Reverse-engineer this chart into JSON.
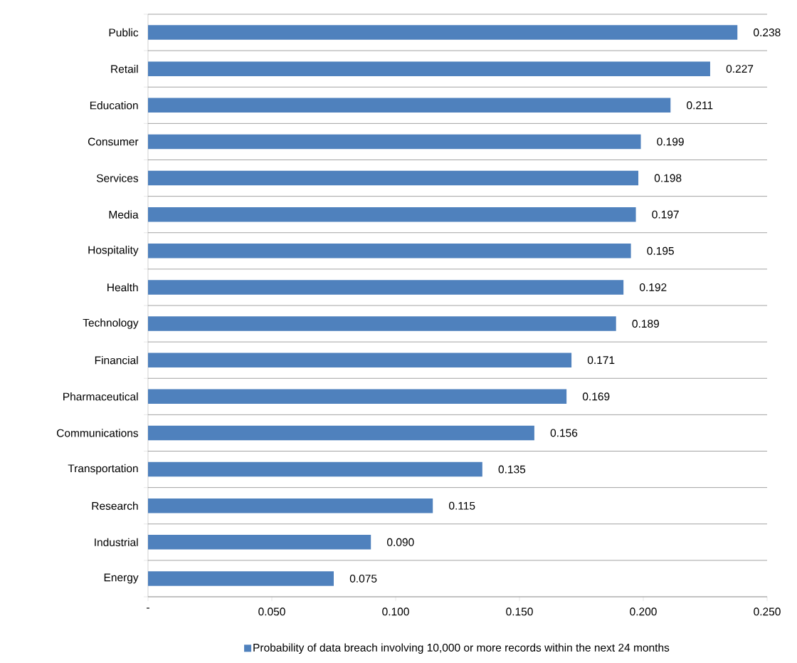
{
  "chart_data": {
    "type": "bar",
    "orientation": "horizontal",
    "categories": [
      "Public",
      "Retail",
      "Education",
      "Consumer",
      "Services",
      "Media",
      "Hospitality",
      "Health",
      "Technology",
      "Financial",
      "Pharmaceutical",
      "Communications",
      "Transportation",
      "Research",
      "Industrial",
      "Energy"
    ],
    "series": [
      {
        "name": "Probability of data breach involving 10,000 or more records within the next 24 months",
        "color": "#4f81bd",
        "values": [
          0.238,
          0.227,
          0.211,
          0.199,
          0.198,
          0.197,
          0.195,
          0.192,
          0.189,
          0.171,
          0.169,
          0.156,
          0.135,
          0.115,
          0.09,
          0.075
        ],
        "value_labels": [
          "0.238",
          "0.227",
          "0.211",
          "0.199",
          "0.198",
          "0.197",
          "0.195",
          "0.192",
          "0.189",
          "0.171",
          "0.169",
          "0.156",
          "0.135",
          "0.115",
          "0.090",
          "0.075"
        ]
      }
    ],
    "xlim": [
      0,
      0.25
    ],
    "xticks": [
      {
        "value": 0,
        "label": "-"
      },
      {
        "value": 0.05,
        "label": "0.050"
      },
      {
        "value": 0.1,
        "label": "0.100"
      },
      {
        "value": 0.15,
        "label": "0.150"
      },
      {
        "value": 0.2,
        "label": "0.200"
      },
      {
        "value": 0.25,
        "label": "0.250"
      }
    ],
    "grid": "y",
    "legend": "bottom"
  }
}
